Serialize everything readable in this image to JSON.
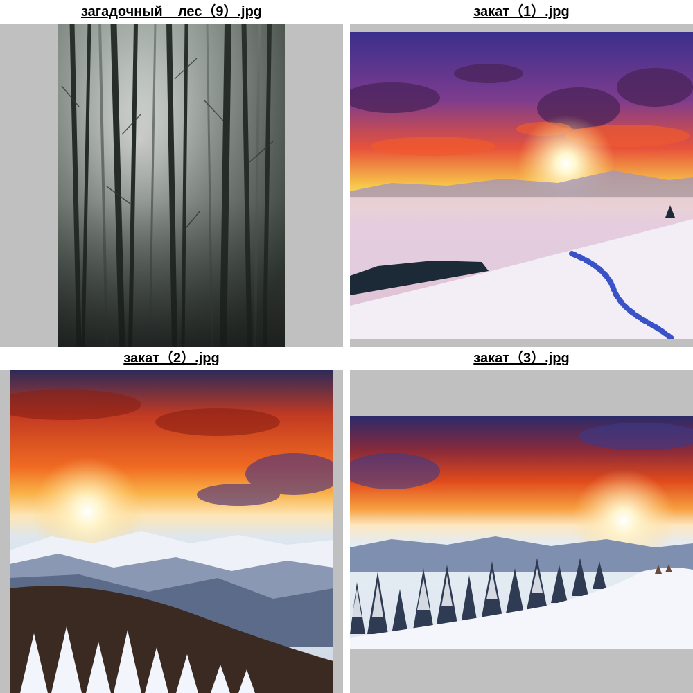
{
  "viewer": {
    "background_color": "#c0c0c0",
    "thumbnails": [
      {
        "filename": "загадочный__лес（9）.jpg",
        "icon": "misty-forest-photo"
      },
      {
        "filename": "закат（1）.jpg",
        "icon": "winter-sunset-photo"
      },
      {
        "filename": "закат（2）.jpg",
        "icon": "mountain-sunset-photo"
      },
      {
        "filename": "закат（3）.jpg",
        "icon": "snowy-pine-sunset-photo"
      }
    ]
  }
}
